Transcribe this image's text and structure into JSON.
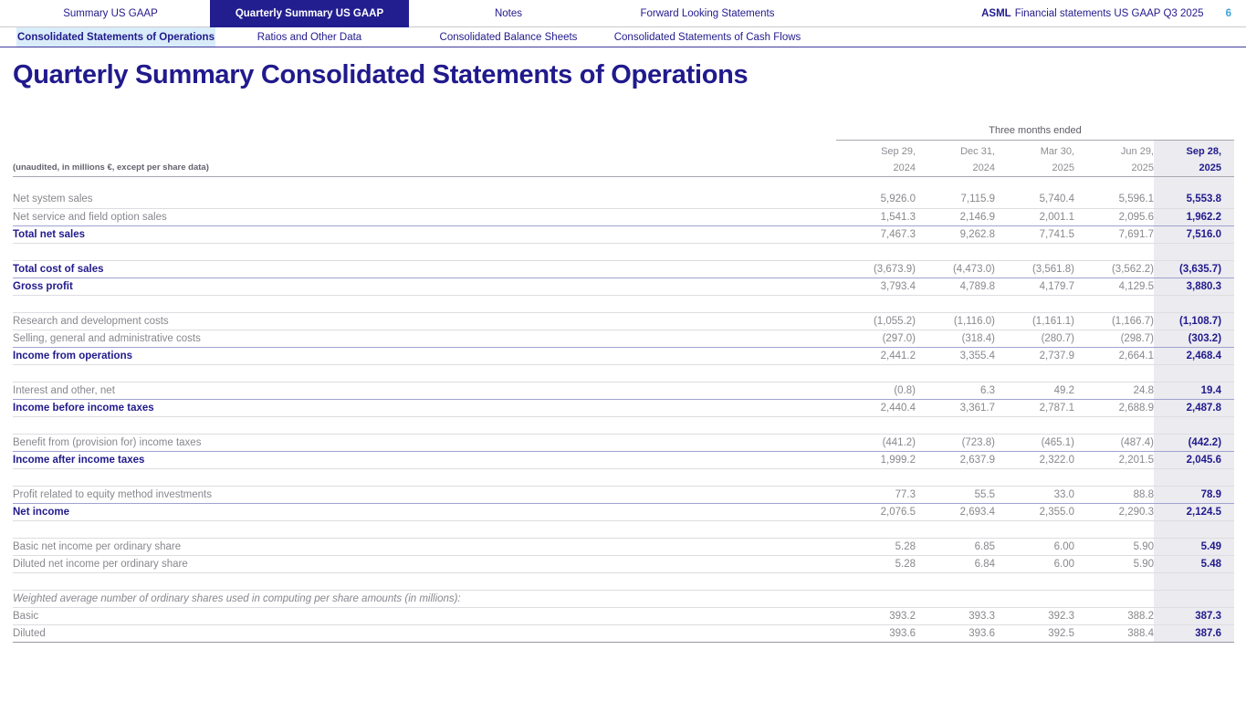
{
  "header": {
    "tabs": [
      {
        "label": "Summary US GAAP",
        "active": false
      },
      {
        "label": "Quarterly Summary US GAAP",
        "active": true
      },
      {
        "label": "Notes",
        "active": false
      },
      {
        "label": "Forward Looking Statements",
        "active": false
      }
    ],
    "doc_brand": "ASML",
    "doc_title": "Financial statements US GAAP Q3 2025",
    "page_number": "6"
  },
  "subnav": {
    "tabs": [
      {
        "label": "Consolidated Statements of Operations",
        "active": true
      },
      {
        "label": "Ratios and Other Data",
        "active": false
      },
      {
        "label": "Consolidated Balance Sheets",
        "active": false
      },
      {
        "label": "Consolidated Statements of Cash Flows",
        "active": false
      }
    ]
  },
  "page": {
    "title": "Quarterly Summary Consolidated Statements of Operations"
  },
  "colors": {
    "navy": "#211a8c",
    "active_tab_bg": "#221e8f",
    "active_subtab_bg": "#d9ecf9",
    "highlight_column_bg": "#ebebf0",
    "page_number_blue": "#3ba1dc",
    "body_gray": "#88888e"
  },
  "table": {
    "note": "(unaudited, in millions €, except per share data)",
    "span_header": "Three months ended",
    "columns": [
      {
        "line1": "Sep 29,",
        "line2": "2024",
        "current": false
      },
      {
        "line1": "Dec 31,",
        "line2": "2024",
        "current": false
      },
      {
        "line1": "Mar 30,",
        "line2": "2025",
        "current": false
      },
      {
        "line1": "Jun 29,",
        "line2": "2025",
        "current": false
      },
      {
        "line1": "Sep 28,",
        "line2": "2025",
        "current": true
      }
    ],
    "rows": [
      {
        "spacer": true
      },
      {
        "label": "Net system sales",
        "values": [
          "5,926.0",
          "7,115.9",
          "5,740.4",
          "5,596.1",
          "5,553.8"
        ]
      },
      {
        "label": "Net service and field option sales",
        "values": [
          "1,541.3",
          "2,146.9",
          "2,001.1",
          "2,095.6",
          "1,962.2"
        ],
        "preSubtotal": true
      },
      {
        "label": "Total net sales",
        "bold": true,
        "values": [
          "7,467.3",
          "9,262.8",
          "7,741.5",
          "7,691.7",
          "7,516.0"
        ]
      },
      {
        "blank": true
      },
      {
        "label": "Total cost of sales",
        "bold": true,
        "values": [
          "(3,673.9)",
          "(4,473.0)",
          "(3,561.8)",
          "(3,562.2)",
          "(3,635.7)"
        ],
        "preSubtotal": true
      },
      {
        "label": "Gross profit",
        "bold": true,
        "values": [
          "3,793.4",
          "4,789.8",
          "4,179.7",
          "4,129.5",
          "3,880.3"
        ]
      },
      {
        "blank": true
      },
      {
        "label": "Research and development costs",
        "values": [
          "(1,055.2)",
          "(1,116.0)",
          "(1,161.1)",
          "(1,166.7)",
          "(1,108.7)"
        ]
      },
      {
        "label": "Selling, general and administrative costs",
        "values": [
          "(297.0)",
          "(318.4)",
          "(280.7)",
          "(298.7)",
          "(303.2)"
        ],
        "preSubtotal": true
      },
      {
        "label": "Income from operations",
        "bold": true,
        "values": [
          "2,441.2",
          "3,355.4",
          "2,737.9",
          "2,664.1",
          "2,468.4"
        ]
      },
      {
        "blank": true
      },
      {
        "label": "Interest and other, net",
        "values": [
          "(0.8)",
          "6.3",
          "49.2",
          "24.8",
          "19.4"
        ],
        "preSubtotal": true
      },
      {
        "label": "Income before income taxes",
        "bold": true,
        "values": [
          "2,440.4",
          "3,361.7",
          "2,787.1",
          "2,688.9",
          "2,487.8"
        ]
      },
      {
        "blank": true
      },
      {
        "label": "Benefit from (provision for) income taxes",
        "values": [
          "(441.2)",
          "(723.8)",
          "(465.1)",
          "(487.4)",
          "(442.2)"
        ],
        "preSubtotal": true
      },
      {
        "label": "Income after income taxes",
        "bold": true,
        "values": [
          "1,999.2",
          "2,637.9",
          "2,322.0",
          "2,201.5",
          "2,045.6"
        ]
      },
      {
        "blank": true
      },
      {
        "label": "Profit related to equity method investments",
        "values": [
          "77.3",
          "55.5",
          "33.0",
          "88.8",
          "78.9"
        ],
        "preSubtotal": true
      },
      {
        "label": "Net income",
        "bold": true,
        "values": [
          "2,076.5",
          "2,693.4",
          "2,355.0",
          "2,290.3",
          "2,124.5"
        ]
      },
      {
        "blank": true
      },
      {
        "label": "Basic net income per ordinary share",
        "values": [
          "5.28",
          "6.85",
          "6.00",
          "5.90",
          "5.49"
        ]
      },
      {
        "label": "Diluted net income per ordinary share",
        "values": [
          "5.28",
          "6.84",
          "6.00",
          "5.90",
          "5.48"
        ]
      },
      {
        "blank": true
      },
      {
        "label": "Weighted average number of ordinary shares used in computing per share amounts (in millions):",
        "italic": true
      },
      {
        "label": "Basic",
        "values": [
          "393.2",
          "393.3",
          "392.3",
          "388.2",
          "387.3"
        ]
      },
      {
        "label": "Diluted",
        "values": [
          "393.6",
          "393.6",
          "392.5",
          "388.4",
          "387.6"
        ],
        "last": true
      }
    ]
  }
}
